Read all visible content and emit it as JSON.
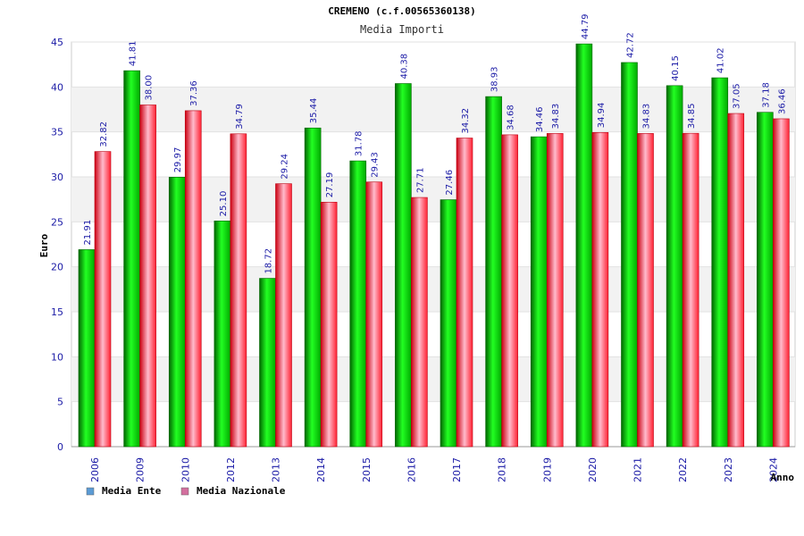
{
  "chart_data": {
    "type": "bar",
    "title": "CREMENO (c.f.00565360138)",
    "subtitle": "Media Importi",
    "xlabel": "Anno",
    "ylabel": "Euro",
    "ylim": [
      0,
      45
    ],
    "yticks": [
      0,
      5,
      10,
      15,
      20,
      25,
      30,
      35,
      40,
      45
    ],
    "categories": [
      "2006",
      "2009",
      "2010",
      "2012",
      "2013",
      "2014",
      "2015",
      "2016",
      "2017",
      "2018",
      "2019",
      "2020",
      "2021",
      "2022",
      "2023",
      "2024"
    ],
    "series": [
      {
        "name": "Media Ente",
        "color": "#00cc00",
        "legend_color": "#5b9bd5",
        "values": [
          21.91,
          41.81,
          29.97,
          25.1,
          18.72,
          35.44,
          31.78,
          40.38,
          27.46,
          38.93,
          34.46,
          44.79,
          42.72,
          40.15,
          41.02,
          37.18
        ],
        "labels": [
          "21.91",
          "41.81",
          "29.97",
          "25.10",
          "18.72",
          "35.44",
          "31.78",
          "40.38",
          "27.46",
          "38.93",
          "34.46",
          "44.79",
          "42.72",
          "40.15",
          "41.02",
          "37.18"
        ]
      },
      {
        "name": "Media Nazionale",
        "color": "#ff3344",
        "legend_color": "#d36f9e",
        "values": [
          32.82,
          38.0,
          37.36,
          34.79,
          29.24,
          27.19,
          29.43,
          27.71,
          34.32,
          34.68,
          34.83,
          34.94,
          34.83,
          34.85,
          37.05,
          36.46
        ],
        "labels": [
          "32.82",
          "38.00",
          "37.36",
          "34.79",
          "29.24",
          "27.19",
          "29.43",
          "27.71",
          "34.32",
          "34.68",
          "34.83",
          "34.94",
          "34.83",
          "34.85",
          "37.05",
          "36.46"
        ]
      }
    ],
    "grid": true,
    "legend_position": "bottom-left"
  }
}
